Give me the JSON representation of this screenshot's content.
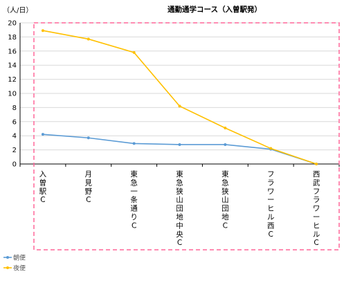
{
  "chart_data": {
    "type": "line",
    "title": "通勤通学コース（入曽駅発）",
    "unit_label": "（人/日）",
    "ylim": [
      0,
      20
    ],
    "y_ticks": [
      0,
      2,
      4,
      6,
      8,
      10,
      12,
      14,
      16,
      18,
      20
    ],
    "grid": "horizontal",
    "legend_position": "bottom-left",
    "categories": [
      "入曽駅C",
      "月見野C",
      "東急一条通りC",
      "東急狭山団地中央C",
      "東急狭山団地C",
      "フラワーヒル西C",
      "西武フラワーヒルC"
    ],
    "series": [
      {
        "name": "朝便",
        "color": "#5b9bd5",
        "values": [
          4.2,
          3.7,
          2.9,
          2.75,
          2.75,
          2.1,
          0
        ]
      },
      {
        "name": "夜便",
        "color": "#ffc000",
        "values": [
          18.9,
          17.7,
          15.8,
          8.2,
          5.1,
          2.2,
          0
        ]
      }
    ]
  },
  "colors": {
    "grid": "#d9d9d9",
    "axis": "#000000",
    "highlight_frame": "#ff6699"
  }
}
